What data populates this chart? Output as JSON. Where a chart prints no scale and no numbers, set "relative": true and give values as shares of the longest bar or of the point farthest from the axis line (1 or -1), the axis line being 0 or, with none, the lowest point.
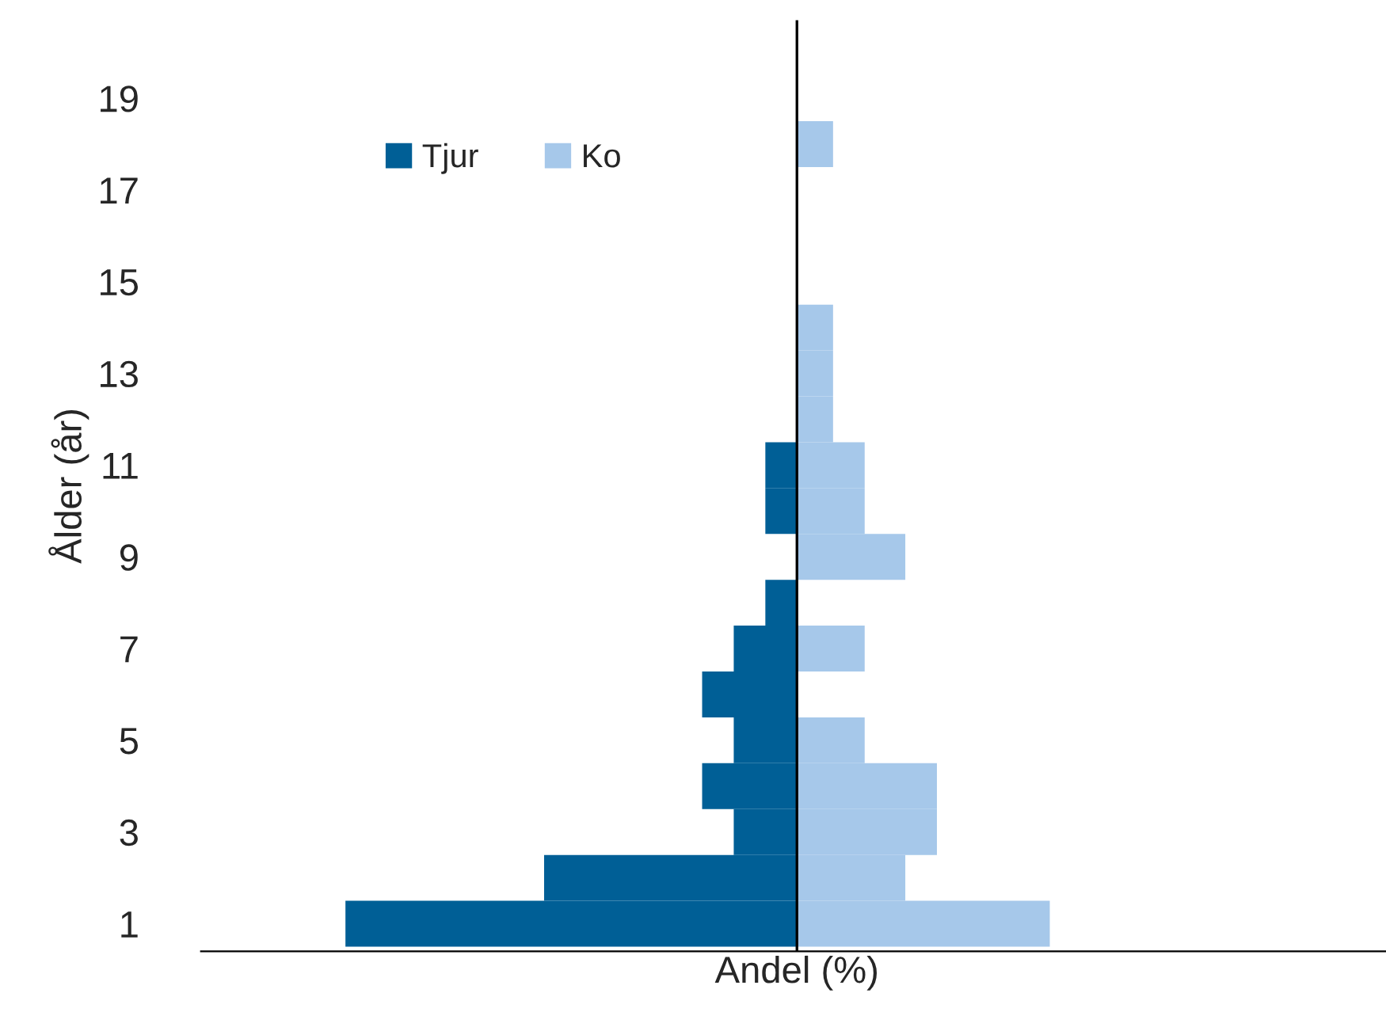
{
  "chart_data": {
    "type": "bar",
    "orientation": "horizontal",
    "relative": true,
    "ylabel": "Ålder (år)",
    "xlabel": "Andel (%)",
    "legend": "top left",
    "grid": false,
    "categories": [
      "19",
      null,
      "17",
      null,
      "15",
      null,
      "13",
      null,
      "11",
      null,
      "9",
      null,
      "7",
      null,
      "5",
      null,
      "3",
      null,
      "1"
    ],
    "series": [
      {
        "name": "Tjur",
        "color": "#005f96",
        "values": [
          0,
          0,
          0,
          0,
          0,
          0,
          0,
          0,
          -0.07,
          -0.07,
          0,
          -0.07,
          -0.14,
          -0.21,
          -0.14,
          -0.21,
          -0.14,
          -0.56,
          -1
        ]
      },
      {
        "name": "Ko",
        "color": "#a6c8ea",
        "values": [
          0,
          0.08,
          0,
          0,
          0,
          0.08,
          0.08,
          0.08,
          0.15,
          0.15,
          0.24,
          0,
          0.15,
          0,
          0.15,
          0.31,
          0.31,
          0.24,
          0.56
        ]
      }
    ]
  }
}
